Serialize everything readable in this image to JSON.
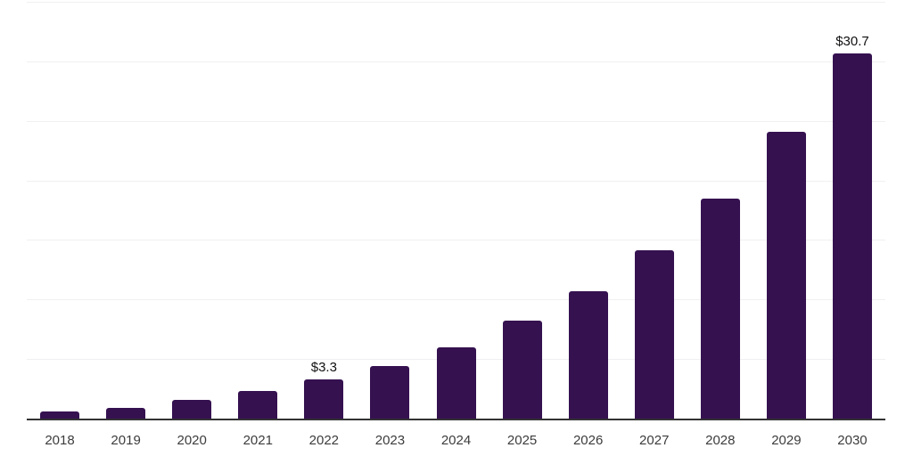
{
  "chart_data": {
    "type": "bar",
    "title": "",
    "xlabel": "",
    "ylabel": "",
    "categories": [
      "2018",
      "2019",
      "2020",
      "2021",
      "2022",
      "2023",
      "2024",
      "2025",
      "2026",
      "2027",
      "2028",
      "2029",
      "2030"
    ],
    "values": [
      0.6,
      0.9,
      1.6,
      2.3,
      3.3,
      4.4,
      6.0,
      8.2,
      10.7,
      14.1,
      18.5,
      24.1,
      30.7
    ],
    "data_labels": {
      "2022": "$3.3",
      "2030": "$30.7"
    },
    "ylim": [
      0,
      35
    ],
    "grid_step": 5,
    "grid": true,
    "legend": false,
    "colors": {
      "bar": "#351150",
      "axis_line": "#333333",
      "gridline": "#f0f0f2",
      "tick_label": "#3c3c3c",
      "data_label": "#111111",
      "background": "#ffffff"
    }
  }
}
